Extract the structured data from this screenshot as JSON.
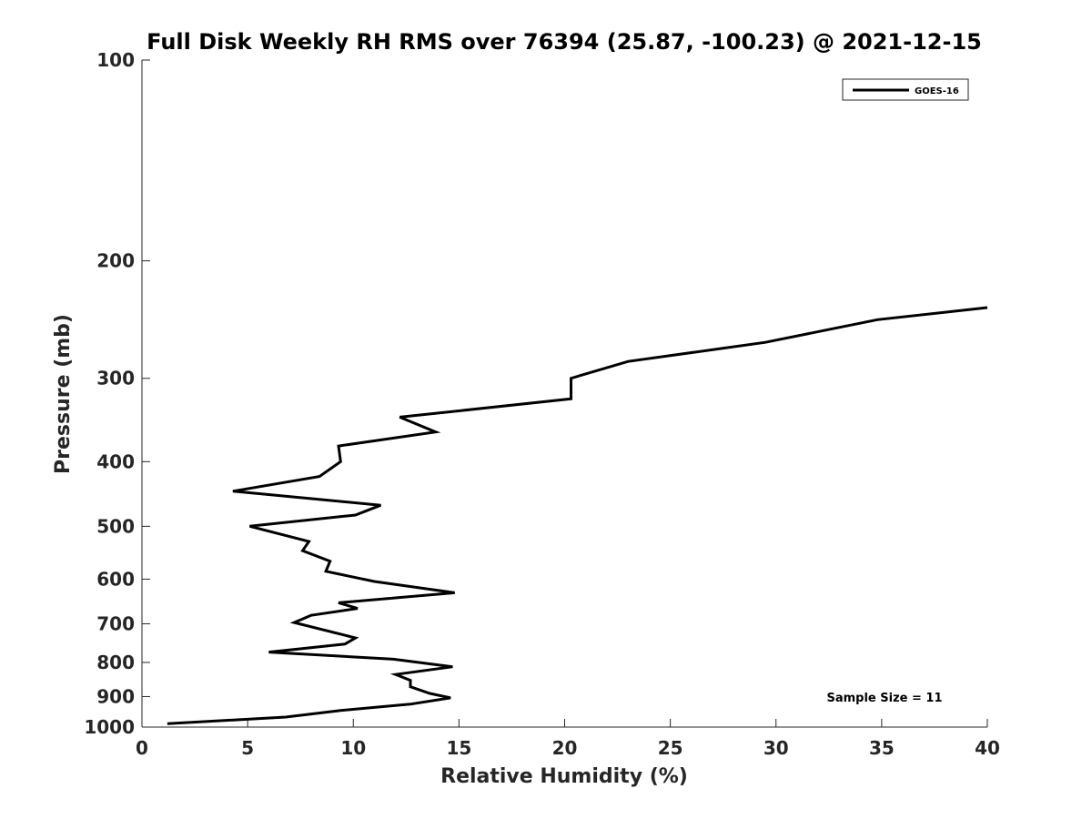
{
  "chart_data": {
    "type": "line",
    "title": "Full Disk Weekly RH RMS over 76394 (25.87, -100.23) @ 2021-12-15",
    "xlabel": "Relative Humidity (%)",
    "ylabel": "Pressure (mb)",
    "xlim": [
      0,
      40
    ],
    "ylim": [
      100,
      1000
    ],
    "yscale": "log",
    "y_reversed": true,
    "xticks": [
      0,
      5,
      10,
      15,
      20,
      25,
      30,
      35,
      40
    ],
    "xtick_labels": [
      "0",
      "5",
      "10",
      "15",
      "20",
      "25",
      "30",
      "35",
      "40"
    ],
    "yticks": [
      100,
      200,
      300,
      400,
      500,
      600,
      700,
      800,
      900,
      1000
    ],
    "ytick_labels": [
      "100",
      "200",
      "300",
      "400",
      "500",
      "600",
      "700",
      "800",
      "900",
      "1000"
    ],
    "grid": false,
    "legend_position": "top-right",
    "series": [
      {
        "name": "GOES-16",
        "color": "#000000",
        "points": [
          [
            40.0,
            235
          ],
          [
            34.8,
            245
          ],
          [
            29.5,
            265
          ],
          [
            23.0,
            283
          ],
          [
            20.3,
            300
          ],
          [
            20.3,
            322
          ],
          [
            12.2,
            343
          ],
          [
            13.9,
            361
          ],
          [
            9.3,
            379
          ],
          [
            9.4,
            400
          ],
          [
            8.4,
            421
          ],
          [
            4.3,
            443
          ],
          [
            11.3,
            465
          ],
          [
            10.1,
            481
          ],
          [
            5.1,
            500
          ],
          [
            7.9,
            527
          ],
          [
            7.6,
            544
          ],
          [
            8.9,
            564
          ],
          [
            8.7,
            584
          ],
          [
            11.0,
            605
          ],
          [
            14.8,
            629
          ],
          [
            9.3,
            651
          ],
          [
            10.2,
            664
          ],
          [
            8.0,
            680
          ],
          [
            7.2,
            697
          ],
          [
            10.1,
            735
          ],
          [
            9.6,
            751
          ],
          [
            6.0,
            772
          ],
          [
            11.9,
            791
          ],
          [
            14.7,
            812
          ],
          [
            12.0,
            834
          ],
          [
            12.7,
            851
          ],
          [
            12.7,
            870
          ],
          [
            13.6,
            890
          ],
          [
            14.6,
            904
          ],
          [
            12.7,
            924
          ],
          [
            9.4,
            944
          ],
          [
            6.8,
            966
          ],
          [
            1.2,
            988
          ]
        ]
      }
    ],
    "annotations": [
      {
        "text": "Sample Size = 11",
        "position": "bottom-right"
      }
    ]
  }
}
